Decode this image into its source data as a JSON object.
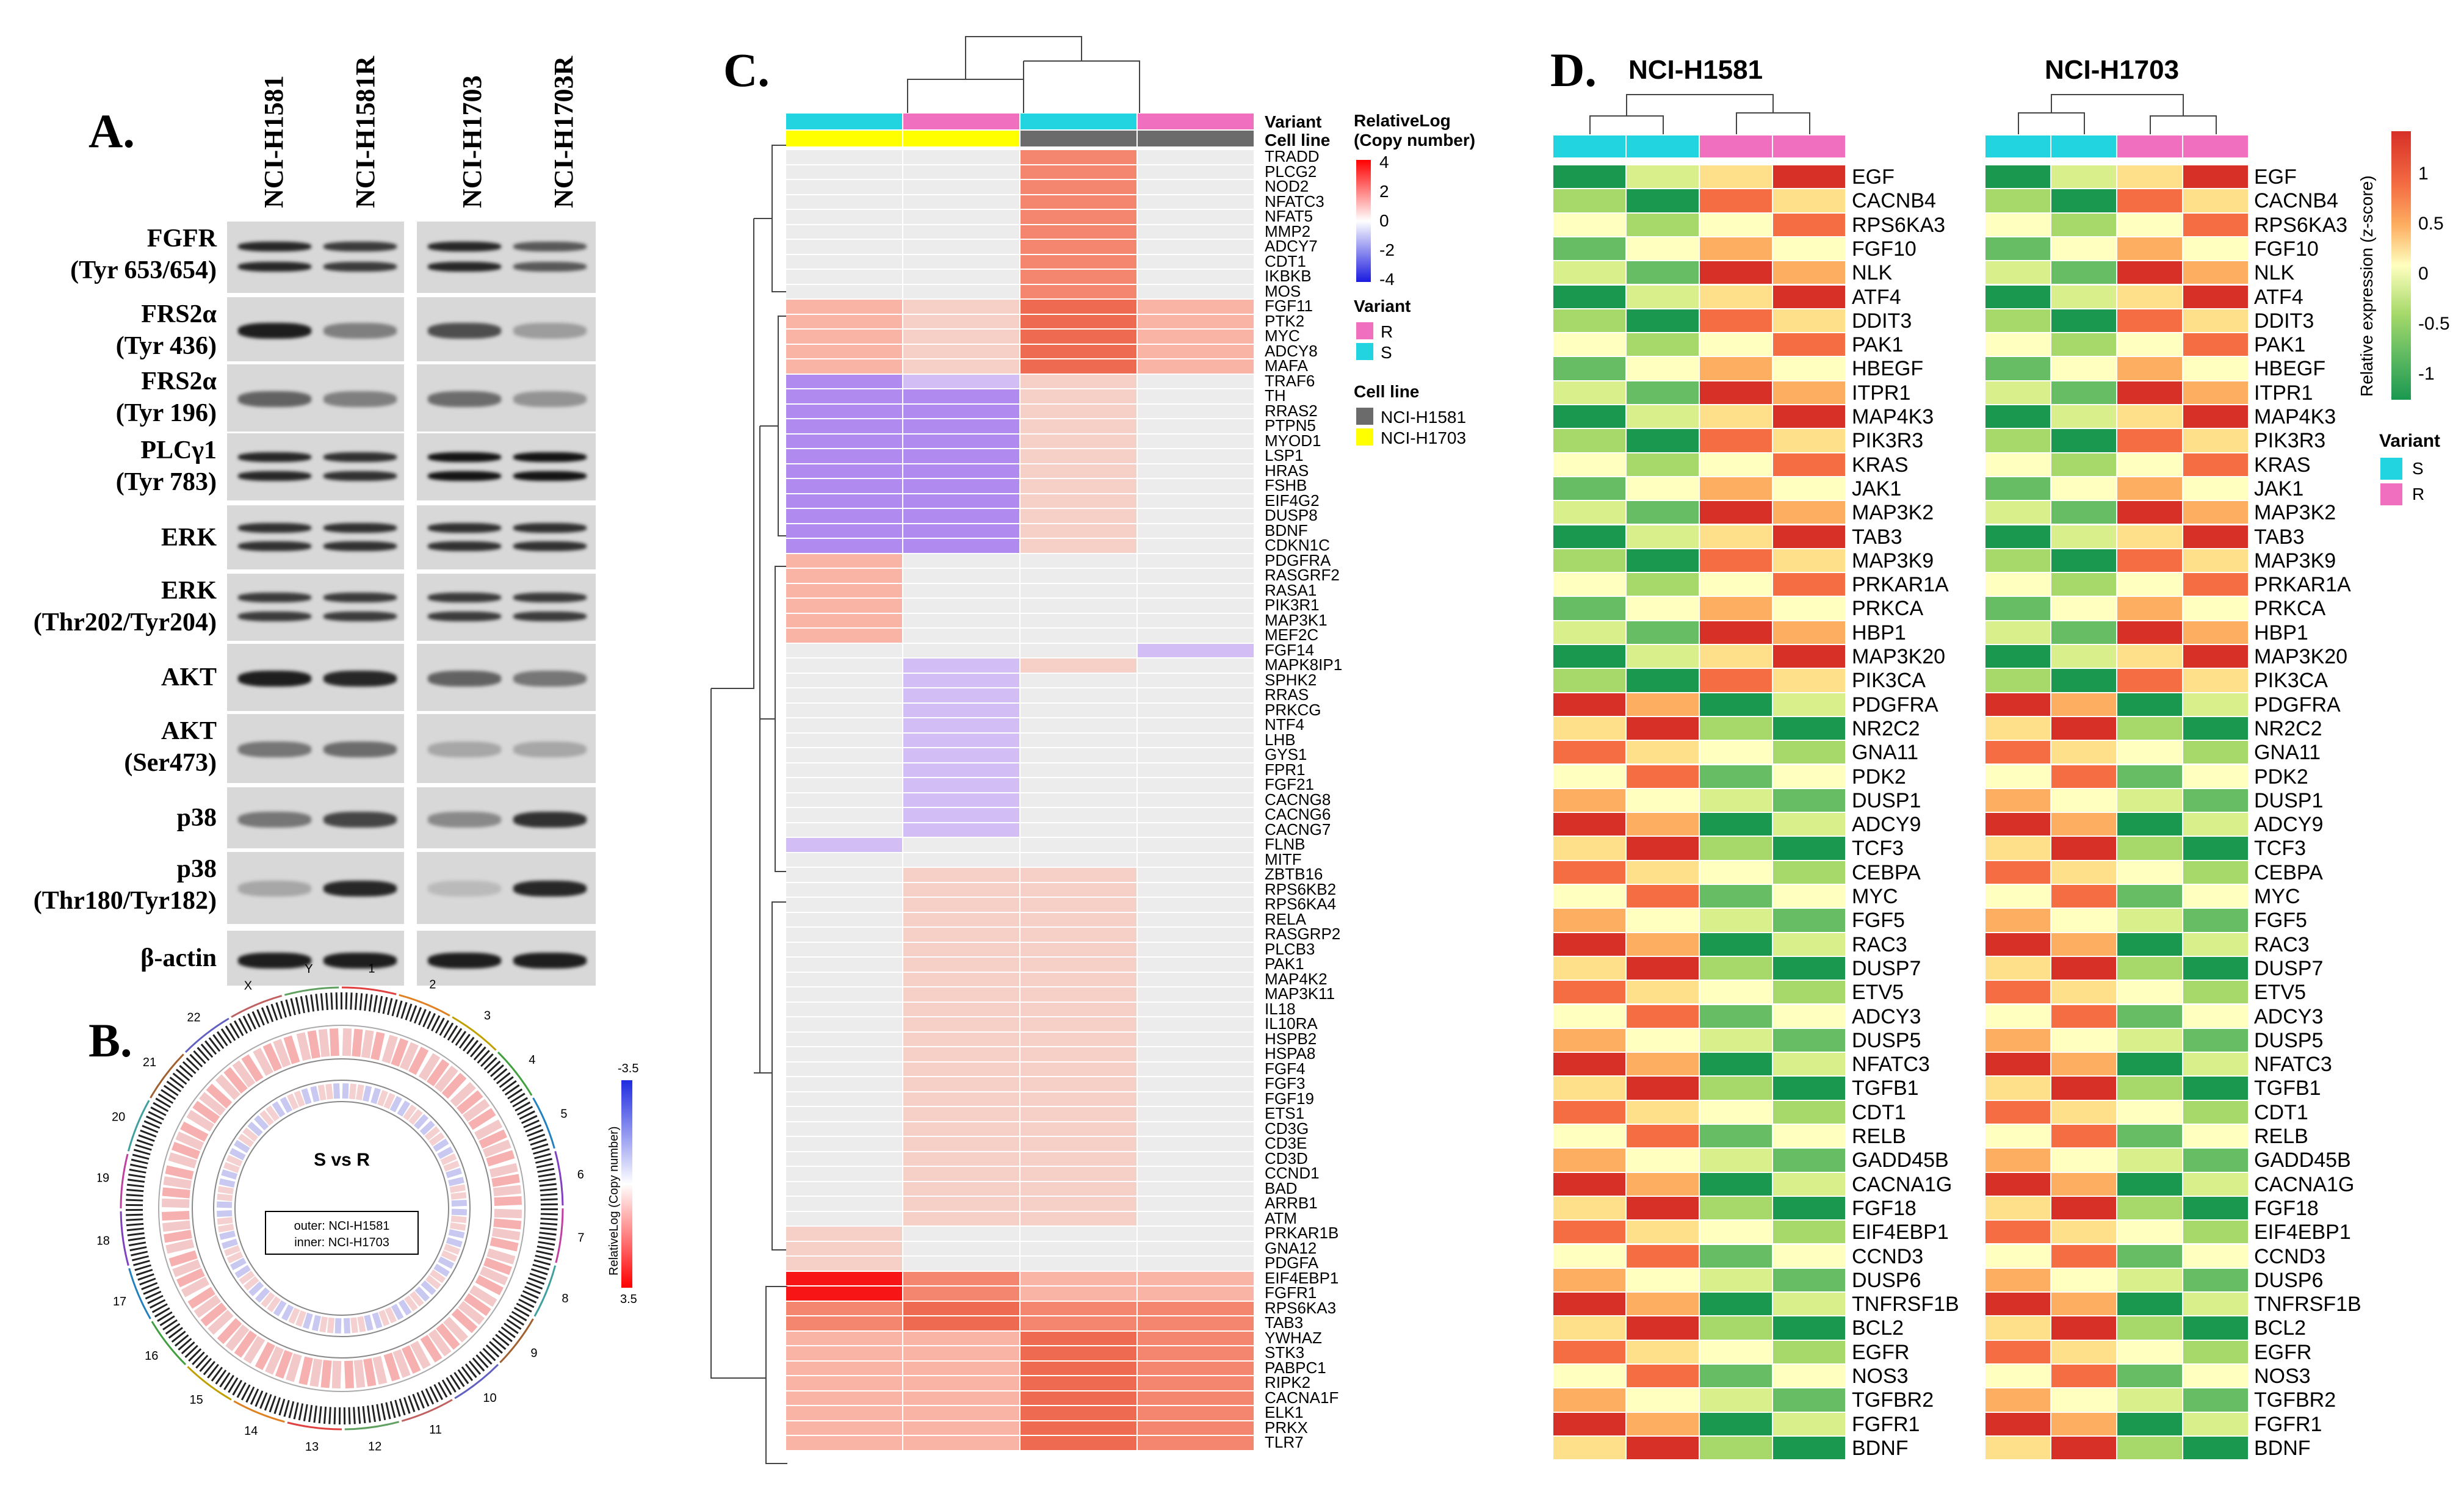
{
  "panels": {
    "a": "A.",
    "b": "B.",
    "c": "C.",
    "d": "D."
  },
  "panel_a": {
    "columns": [
      "NCI-H1581",
      "NCI-H1581R",
      "NCI-H1703",
      "NCI-H1703R"
    ],
    "rows": [
      {
        "l1": "FGFR",
        "l2": "(Tyr 653/654)"
      },
      {
        "l1": "FRS2α",
        "l2": "(Tyr 436)"
      },
      {
        "l1": "FRS2α",
        "l2": "(Tyr 196)"
      },
      {
        "l1": "PLCγ1",
        "l2": "(Tyr 783)"
      },
      {
        "l1": "ERK",
        "l2": ""
      },
      {
        "l1": "ERK",
        "l2": "(Thr202/Tyr204)"
      },
      {
        "l1": "AKT",
        "l2": ""
      },
      {
        "l1": "AKT",
        "l2": "(Ser473)"
      },
      {
        "l1": "p38",
        "l2": ""
      },
      {
        "l1": "p38",
        "l2": "(Thr180/Tyr182)"
      },
      {
        "l1": "β-actin",
        "l2": ""
      }
    ]
  },
  "panel_b": {
    "center_title": "S vs R",
    "outer": "outer: NCI-H1581",
    "inner": "inner: NCI-H1703",
    "legend_title": "RelativeLog (Copy number)",
    "legend_max": "-3.5",
    "legend_min": "3.5",
    "chromosomes": [
      "1",
      "2",
      "3",
      "4",
      "5",
      "6",
      "7",
      "8",
      "9",
      "10",
      "11",
      "12",
      "13",
      "14",
      "15",
      "16",
      "17",
      "18",
      "19",
      "20",
      "21",
      "22",
      "X",
      "Y"
    ]
  },
  "panel_c": {
    "track_labels": [
      "Variant",
      "Cell line"
    ],
    "legend": {
      "title1": "RelativeLog",
      "title2": "(Copy number)",
      "ticks": [
        "4",
        "2",
        "0",
        "-2",
        "-4"
      ],
      "variant_title": "Variant",
      "variant_items": [
        "R",
        "S"
      ],
      "cellline_title": "Cell line",
      "cellline_items": [
        "NCI-H1581",
        "NCI-H1703"
      ],
      "colors": {
        "R": "#f06fbe",
        "S": "#22d3e0",
        "NCI-H1581": "#6b6b6b",
        "NCI-H1703": "#ffff00"
      }
    },
    "genes": [
      "TRADD",
      "PLCG2",
      "NOD2",
      "NFATC3",
      "NFAT5",
      "MMP2",
      "ADCY7",
      "CDT1",
      "IKBKB",
      "MOS",
      "FGF11",
      "PTK2",
      "MYC",
      "ADCY8",
      "MAFA",
      "TRAF6",
      "TH",
      "RRAS2",
      "PTPN5",
      "MYOD1",
      "LSP1",
      "HRAS",
      "FSHB",
      "EIF4G2",
      "DUSP8",
      "BDNF",
      "CDKN1C",
      "PDGFRA",
      "RASGRF2",
      "RASA1",
      "PIK3R1",
      "MAP3K1",
      "MEF2C",
      "FGF14",
      "MAPK8IP1",
      "SPHK2",
      "RRAS",
      "PRKCG",
      "NTF4",
      "LHB",
      "GYS1",
      "FPR1",
      "FGF21",
      "CACNG8",
      "CACNG6",
      "CACNG7",
      "FLNB",
      "MITF",
      "ZBTB16",
      "RPS6KB2",
      "RPS6KA4",
      "RELA",
      "RASGRP2",
      "PLCB3",
      "PAK1",
      "MAP4K2",
      "MAP3K11",
      "IL18",
      "IL10RA",
      "HSPB2",
      "HSPA8",
      "FGF4",
      "FGF3",
      "FGF19",
      "ETS1",
      "CD3G",
      "CD3E",
      "CD3D",
      "CCND1",
      "BAD",
      "ARRB1",
      "ATM",
      "PRKAR1B",
      "GNA12",
      "PDGFA",
      "EIF4EBP1",
      "FGFR1",
      "RPS6KA3",
      "TAB3",
      "YWHAZ",
      "STK3",
      "PABPC1",
      "RIPK2",
      "CACNA1F",
      "ELK1",
      "PRKX",
      "TLR7"
    ]
  },
  "panel_d": {
    "left_title": "NCI-H1581",
    "right_title": "NCI-H1703",
    "legend_title": "Relative expression (z-score)",
    "legend_ticks": [
      "1",
      "0.5",
      "0",
      "-0.5",
      "-1"
    ],
    "variant_title": "Variant",
    "variant_items": [
      "S",
      "R"
    ],
    "genes": [
      "EGF",
      "CACNB4",
      "RPS6KA3",
      "FGF10",
      "NLK",
      "ATF4",
      "DDIT3",
      "PAK1",
      "HBEGF",
      "ITPR1",
      "MAP4K3",
      "PIK3R3",
      "KRAS",
      "JAK1",
      "MAP3K2",
      "TAB3",
      "MAP3K9",
      "PRKAR1A",
      "PRKCA",
      "HBP1",
      "MAP3K20",
      "PIK3CA",
      "PDGFRA",
      "NR2C2",
      "GNA11",
      "PDK2",
      "DUSP1",
      "ADCY9",
      "TCF3",
      "CEBPA",
      "MYC",
      "FGF5",
      "RAC3",
      "DUSP7",
      "ETV5",
      "ADCY3",
      "DUSP5",
      "NFATC3",
      "TGFB1",
      "CDT1",
      "RELB",
      "GADD45B",
      "CACNA1G",
      "FGF18",
      "EIF4EBP1",
      "CCND3",
      "DUSP6",
      "TNFRSF1B",
      "BCL2",
      "EGFR",
      "NOS3",
      "TGFBR2",
      "FGFR1",
      "BDNF"
    ]
  }
}
